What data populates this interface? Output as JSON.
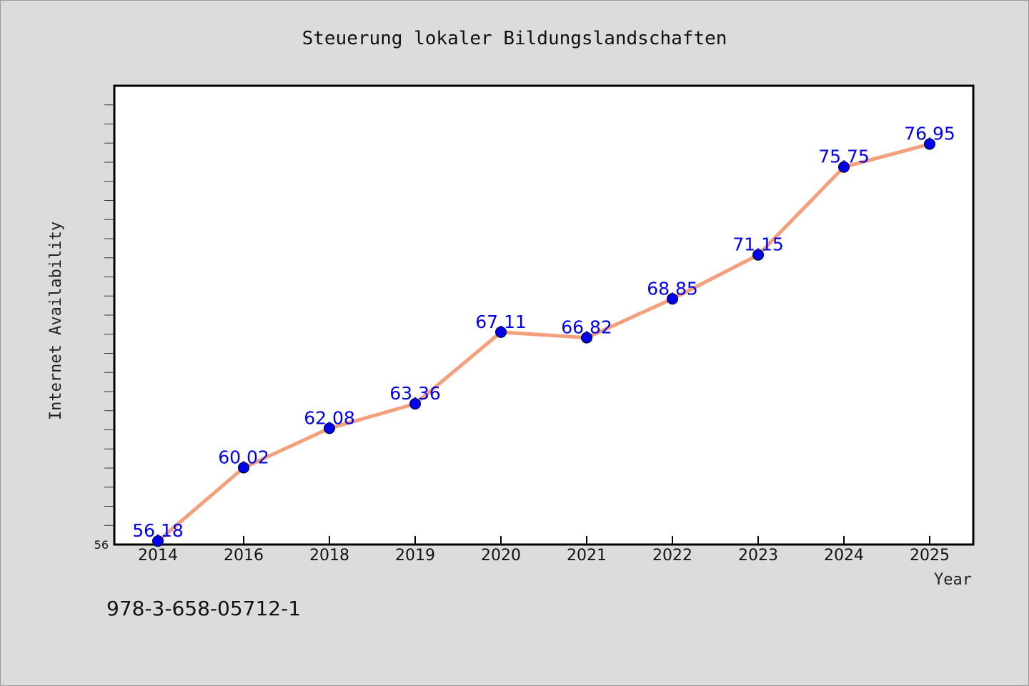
{
  "chart_data": {
    "type": "line",
    "title": "Steuerung lokaler Bildungslandschaften",
    "xlabel": "Year",
    "ylabel": "Internet Availability",
    "categories": [
      "2014",
      "2016",
      "2018",
      "2019",
      "2020",
      "2021",
      "2022",
      "2023",
      "2024",
      "2025"
    ],
    "series": [
      {
        "values": [
          56.18,
          60.02,
          62.08,
          63.36,
          67.11,
          66.82,
          68.85,
          71.15,
          75.75,
          76.95
        ],
        "value_labels": [
          "56.18",
          "60.02",
          "62.08",
          "63.36",
          "67.11",
          "66.82",
          "68.85",
          "71.15",
          "75.75",
          "76.95"
        ],
        "line_color": "#f4a07c",
        "marker_color": "#0000ee"
      }
    ],
    "ylim": [
      56,
      80
    ],
    "y_tick_labels": [
      "56"
    ],
    "y_minor_step": 1,
    "grid": false,
    "legend": "none"
  },
  "footer": {
    "isbn": "978-3-658-05712-1"
  },
  "colors": {
    "background": "#dcdcdc",
    "plot_background": "#ffffff",
    "line": "#f4a07c",
    "marker": "#0000ee",
    "data_label": "#0000ee"
  }
}
